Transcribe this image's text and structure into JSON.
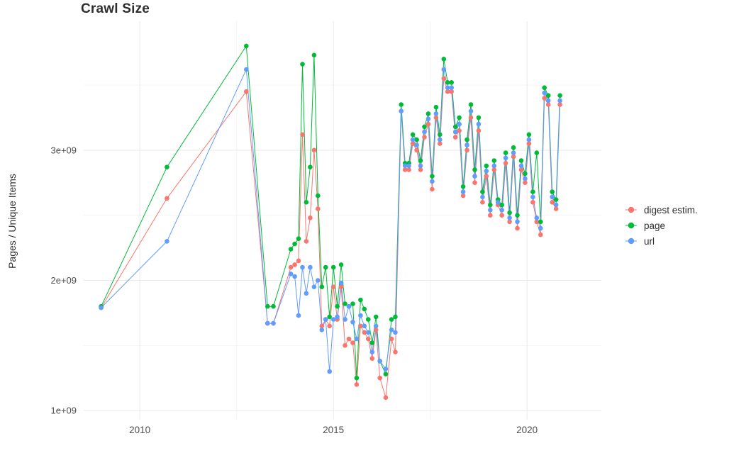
{
  "chart_data": {
    "type": "scatter",
    "title": "Crawl Size",
    "xlabel": "",
    "ylabel": "Pages / Unique Items",
    "value_unit": "pages (values in billions, i.e. x 1e9)",
    "grid": true,
    "legend_position": "right",
    "xlim": [
      2008.55,
      2021.92
    ],
    "ylim": [
      0.93,
      3.99
    ],
    "x_ticks": [
      2010,
      2015,
      2020
    ],
    "x_tick_labels": [
      "2010",
      "2015",
      "2020"
    ],
    "x_minor_ticks": [
      2012.5,
      2017.5
    ],
    "y_ticks": [
      1,
      2,
      3
    ],
    "y_tick_labels": [
      "1e+09",
      "2e+09",
      "3e+09"
    ],
    "y_minor_ticks": [
      1.5,
      2.5,
      3.5
    ],
    "x": [
      2009.0,
      2010.7,
      2012.75,
      2013.3,
      2013.45,
      2013.9,
      2014.0,
      2014.1,
      2014.2,
      2014.3,
      2014.4,
      2014.5,
      2014.6,
      2014.7,
      2014.8,
      2014.9,
      2015.0,
      2015.1,
      2015.2,
      2015.3,
      2015.4,
      2015.5,
      2015.6,
      2015.7,
      2015.8,
      2015.9,
      2016.0,
      2016.1,
      2016.2,
      2016.35,
      2016.5,
      2016.6,
      2016.75,
      2016.85,
      2016.95,
      2017.05,
      2017.15,
      2017.25,
      2017.35,
      2017.45,
      2017.55,
      2017.65,
      2017.75,
      2017.85,
      2017.95,
      2018.05,
      2018.15,
      2018.25,
      2018.35,
      2018.45,
      2018.55,
      2018.65,
      2018.75,
      2018.85,
      2018.95,
      2019.05,
      2019.15,
      2019.25,
      2019.35,
      2019.45,
      2019.55,
      2019.65,
      2019.75,
      2019.85,
      2019.95,
      2020.05,
      2020.15,
      2020.25,
      2020.35,
      2020.45,
      2020.55,
      2020.65,
      2020.75,
      2020.85
    ],
    "series": [
      {
        "id": "digest",
        "name": "digest estim.",
        "color": "#F8766D",
        "values": [
          1.79,
          2.63,
          3.45,
          1.67,
          1.67,
          2.1,
          2.12,
          2.15,
          3.12,
          2.3,
          2.48,
          3.0,
          2.55,
          1.65,
          1.7,
          1.65,
          1.95,
          1.7,
          1.95,
          1.5,
          1.55,
          1.52,
          1.2,
          1.65,
          1.6,
          1.55,
          1.4,
          1.62,
          1.25,
          1.1,
          1.55,
          1.45,
          3.3,
          2.85,
          2.85,
          3.05,
          3.0,
          2.85,
          3.1,
          3.2,
          2.7,
          3.25,
          3.05,
          3.55,
          3.45,
          3.45,
          3.1,
          3.15,
          2.65,
          3.0,
          3.25,
          2.75,
          3.15,
          2.6,
          2.8,
          2.5,
          2.85,
          2.58,
          2.5,
          2.9,
          2.45,
          2.95,
          2.4,
          2.85,
          2.75,
          3.05,
          2.6,
          2.45,
          2.35,
          3.4,
          3.35,
          2.6,
          2.55,
          3.35
        ]
      },
      {
        "id": "page",
        "name": "page",
        "color": "#00BA38",
        "values": [
          1.8,
          2.87,
          3.8,
          1.8,
          1.8,
          2.24,
          2.28,
          2.32,
          3.66,
          2.6,
          2.87,
          3.73,
          2.65,
          1.95,
          2.1,
          1.72,
          2.1,
          1.8,
          2.12,
          1.82,
          1.8,
          1.82,
          1.25,
          1.85,
          1.78,
          1.7,
          1.52,
          1.72,
          1.38,
          1.28,
          1.7,
          1.72,
          3.35,
          2.9,
          2.9,
          3.12,
          3.08,
          2.92,
          3.18,
          3.28,
          2.8,
          3.33,
          3.12,
          3.7,
          3.52,
          3.52,
          3.18,
          3.25,
          2.72,
          3.08,
          3.35,
          2.85,
          3.25,
          2.68,
          2.88,
          2.58,
          2.92,
          2.62,
          2.58,
          2.98,
          2.52,
          3.02,
          2.5,
          2.92,
          2.82,
          3.12,
          2.68,
          2.98,
          2.45,
          3.48,
          3.42,
          2.68,
          2.62,
          3.42
        ]
      },
      {
        "id": "url",
        "name": "url",
        "color": "#619CFF",
        "values": [
          1.79,
          2.3,
          3.62,
          1.67,
          1.67,
          2.05,
          2.03,
          1.73,
          2.1,
          1.9,
          2.1,
          1.95,
          2.0,
          1.62,
          1.7,
          1.3,
          1.7,
          1.72,
          1.98,
          1.7,
          1.8,
          1.68,
          1.55,
          1.73,
          1.65,
          1.6,
          1.45,
          1.65,
          1.38,
          1.32,
          1.62,
          1.6,
          3.3,
          2.88,
          2.88,
          3.08,
          3.04,
          2.88,
          3.14,
          3.24,
          2.76,
          3.28,
          3.08,
          3.62,
          3.48,
          3.48,
          3.14,
          3.2,
          2.68,
          3.04,
          3.3,
          2.8,
          3.2,
          2.64,
          2.84,
          2.54,
          2.88,
          2.6,
          2.54,
          2.94,
          2.48,
          2.98,
          2.45,
          2.88,
          2.78,
          3.08,
          2.64,
          2.48,
          2.4,
          3.44,
          3.38,
          2.64,
          2.58,
          3.38
        ]
      }
    ],
    "style": {
      "grid_major_color": "#e9e9e9",
      "grid_minor_color": "#f4f4f4",
      "tick_label_color": "#4d4d4d",
      "point_radius": 3.3
    }
  }
}
